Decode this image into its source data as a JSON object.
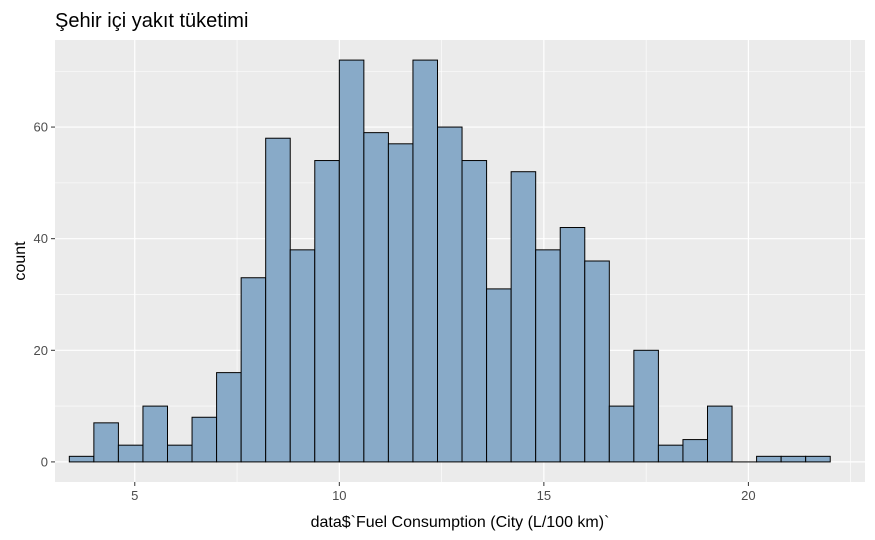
{
  "chart_data": {
    "type": "bar",
    "title": "Şehir içi yakıt tüketimi",
    "xlabel": "data$`Fuel Consumption (City (L/100 km)`",
    "ylabel": "count",
    "xlim": [
      3.05,
      22.85
    ],
    "ylim": [
      -3.6,
      75.6
    ],
    "x_ticks": [
      5,
      10,
      15,
      20
    ],
    "y_ticks": [
      0,
      20,
      40,
      60
    ],
    "bin_width": 0.6,
    "bin_centers": [
      3.7,
      4.3,
      4.9,
      5.5,
      6.1,
      6.7,
      7.3,
      7.9,
      8.5,
      9.1,
      9.7,
      10.3,
      10.9,
      11.5,
      12.1,
      12.7,
      13.3,
      13.9,
      14.5,
      15.1,
      15.7,
      16.3,
      16.9,
      17.5,
      18.1,
      18.7,
      19.3,
      19.9,
      20.5,
      21.1,
      21.7
    ],
    "counts": [
      1,
      7,
      3,
      10,
      3,
      8,
      16,
      33,
      58,
      38,
      54,
      72,
      59,
      57,
      72,
      60,
      54,
      31,
      52,
      38,
      42,
      36,
      10,
      20,
      3,
      4,
      10,
      0,
      1,
      1,
      1
    ],
    "bar_fill": "#88aac8",
    "bar_outline": "#000000",
    "panel_background": "#ebebeb",
    "grid": true
  }
}
